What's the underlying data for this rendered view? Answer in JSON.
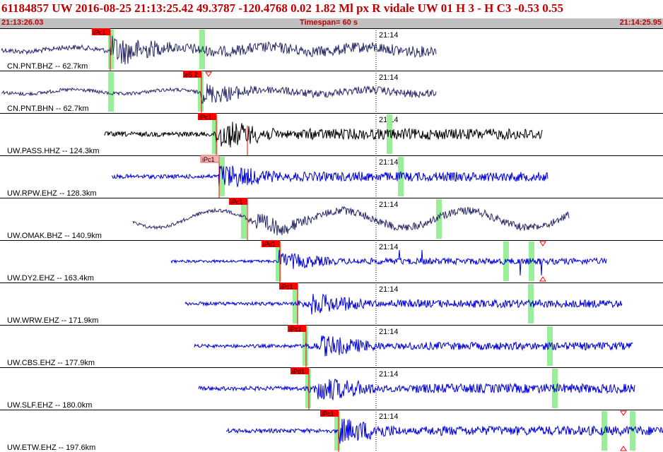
{
  "header": {
    "title": "61184857 UW 2016-08-25 21:13:25.42   49.3787 -120.4768   0.02  1.82 Ml  px  R vidale   UW 01  H   3  -  H C3   -0.53  0.55",
    "start_time": "21:13:26.03",
    "timespan": "Timespan=  60 s",
    "end_time": "21:14:25.95"
  },
  "colors": {
    "pick_red": "#ff0000",
    "pick_pink": "#ffb0b0",
    "green_marker": "#99ee99",
    "trace_dark": "#2a2a6a",
    "trace_black": "#000000",
    "trace_blue": "#0000dd",
    "header_text": "#c00000",
    "sub_bg": "#c0c0c0"
  },
  "minute_label": "21:14",
  "panels": [
    {
      "label": "CN.PNT.BHZ -- 62.7km",
      "pick": "iPc1",
      "pick_style": "red"
    },
    {
      "label": "CN.PNT.BHN -- 62.7km",
      "pick": "eS 2",
      "pick_style": "red"
    },
    {
      "label": "UW.PASS.HHZ -- 124.3km",
      "pick": "iPc1",
      "pick_style": "red"
    },
    {
      "label": "UW.RPW.EHZ -- 128.3km",
      "pick": "iPc1",
      "pick_style": "pink"
    },
    {
      "label": "UW.OMAK.BHZ -- 140.9km",
      "pick": "iPc1",
      "pick_style": "red"
    },
    {
      "label": "UW.DY2.EHZ -- 163.4km",
      "pick": "iPd1",
      "pick_style": "red"
    },
    {
      "label": "UW.WRW.EHZ -- 171.9km",
      "pick": "iPc1",
      "pick_style": "red"
    },
    {
      "label": "UW.CBS.EHZ -- 177.9km",
      "pick": "iPc1",
      "pick_style": "red"
    },
    {
      "label": "UW.SLF.EHZ -- 180.0km",
      "pick": "iPd1",
      "pick_style": "red"
    },
    {
      "label": "UW.ETW.EHZ -- 197.6km",
      "pick": "iPc1",
      "pick_style": "red"
    }
  ]
}
